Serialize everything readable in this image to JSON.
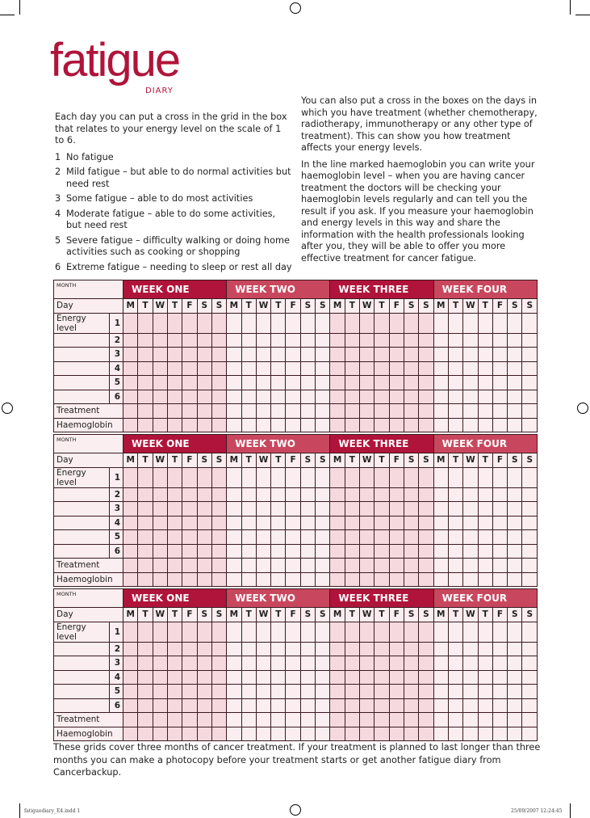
{
  "logo": {
    "title": "fatigue",
    "subtitle": "DIARY"
  },
  "intro": {
    "left_paragraph": "Each day you can put a cross in the grid in the box that relates to your energy level on the scale of 1 to 6.",
    "scale": [
      {
        "n": "1",
        "text": "No fatigue"
      },
      {
        "n": "2",
        "text": "Mild fatigue – but able to do normal activities but need rest"
      },
      {
        "n": "3",
        "text": "Some fatigue – able to do most activities"
      },
      {
        "n": "4",
        "text": "Moderate fatigue – able to do some activities, but need rest"
      },
      {
        "n": "5",
        "text": "Severe fatigue – difficulty walking or doing home activities such as cooking or shopping"
      },
      {
        "n": "6",
        "text": "Extreme fatigue – needing to sleep or rest all day"
      }
    ],
    "right_paragraph_1": "You can also put a cross in the boxes on the days in which you have treatment (whether chemotherapy, radiotherapy, immunotherapy or any other type of treatment). This can show you how treatment affects your energy levels.",
    "right_paragraph_2": "In the line marked haemoglobin you can write your haemoglobin level – when you are having cancer treatment the doctors will be checking your haemoglobin levels regularly and can tell you the result if you ask. If you measure your haemoglobin and energy levels in this way and share the information with the health professionals looking after you, they will be able to offer you more effective treatment for cancer fatigue."
  },
  "grid": {
    "month_label": "MONTH",
    "weeks": [
      "WEEK ONE",
      "WEEK TWO",
      "WEEK THREE",
      "WEEK FOUR"
    ],
    "day_label": "Day",
    "days": [
      "M",
      "T",
      "W",
      "T",
      "F",
      "S",
      "S"
    ],
    "energy_label": "Energy level",
    "levels": [
      "1",
      "2",
      "3",
      "4",
      "5",
      "6"
    ],
    "treatment_label": "Treatment",
    "haemoglobin_label": "Haemoglobin",
    "count": 3
  },
  "footer_text": "These grids cover three months of cancer treatment. If your treatment is planned to last longer than three months you can make a photocopy before your treatment starts or get another fatigue diary from Cancerbackup.",
  "print_marks": {
    "file": "fatiguediary_E4.indd   1",
    "timestamp": "25/09/2007   12:24:45"
  },
  "colors": {
    "brand": "#b0143a",
    "brand_light": "#c9475e",
    "cell_dark": "#f5d9de",
    "cell_light": "#fbeef0"
  }
}
